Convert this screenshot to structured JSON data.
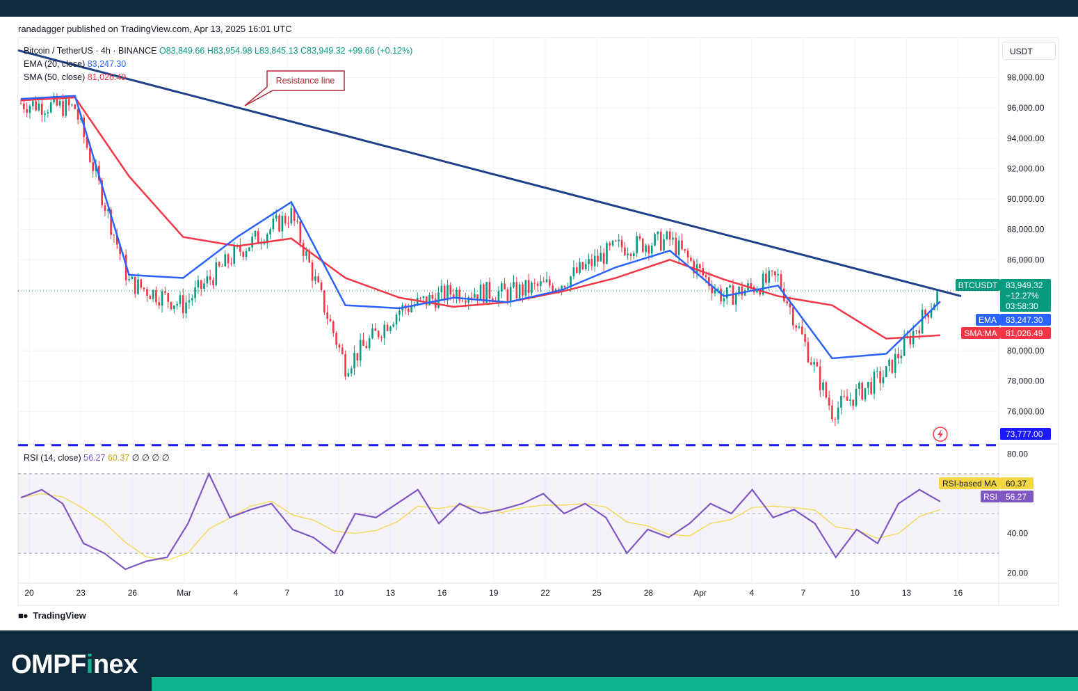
{
  "header": {
    "published": "ranadagger published on TradingView.com, Apr 13, 2025 16:01 UTC"
  },
  "legend": {
    "symbol": "Bitcoin / TetherUS · 4h · BINANCE",
    "open": "O83,849.66",
    "high": "H83,954.98",
    "low": "L83,845.13",
    "close": "C83,949.32",
    "change": "+99.66 (+0.12%)",
    "ema_label": "EMA (20, close)",
    "ema_value": "83,247.30",
    "sma_label": "SMA (50, close)",
    "sma_value": "81,026.49"
  },
  "annotation": {
    "text": "Resistance line"
  },
  "currency": "USDT",
  "price_axis": {
    "labels": [
      "98,000.00",
      "96,000.00",
      "94,000.00",
      "92,000.00",
      "90,000.00",
      "88,000.00",
      "86,000.00",
      "80,000.00",
      "78,000.00",
      "76,000.00"
    ]
  },
  "price_tags": {
    "symbol": "BTCUSDT",
    "price": "83,949.32",
    "pct": "−12.27%",
    "countdown": "03:58:30",
    "ema_name": "EMA",
    "ema": "83,247.30",
    "sma_name": "SMA:MA",
    "sma": "81,026.49",
    "support": "73,777.00"
  },
  "rsi_legend": {
    "label": "RSI (14, close)",
    "rsi": "56.27",
    "ma": "60.37",
    "extra": "∅ ∅ ∅ ∅"
  },
  "rsi_axis": {
    "labels": [
      "80.00",
      "40.00",
      "20.00"
    ]
  },
  "rsi_tags": {
    "ma_name": "RSI-based MA",
    "ma": "60.37",
    "rsi_name": "RSI",
    "rsi": "56.27"
  },
  "time_axis": {
    "labels": [
      "20",
      "23",
      "26",
      "Mar",
      "4",
      "7",
      "10",
      "13",
      "16",
      "19",
      "22",
      "25",
      "28",
      "Apr",
      "4",
      "7",
      "10",
      "13",
      "16"
    ]
  },
  "footer": {
    "tv": "TradingView",
    "brand_a": "OMPF",
    "brand_b": "i",
    "brand_c": "nex"
  },
  "colors": {
    "up": "#089981",
    "down": "#f23645",
    "ema": "#2962ff",
    "sma": "#f23645",
    "trend": "#1e3f8a",
    "rsi": "#7e57c2",
    "rsi_ma": "#f5d742",
    "support": "#1a1aff"
  },
  "chart_data": {
    "type": "line",
    "title": "Bitcoin / TetherUS · 4h · BINANCE",
    "price_range": [
      74500,
      100000
    ],
    "x": [
      "Feb 20",
      "Feb 23",
      "Feb 26",
      "Mar 1",
      "Mar 4",
      "Mar 7",
      "Mar 10",
      "Mar 13",
      "Mar 16",
      "Mar 19",
      "Mar 22",
      "Mar 25",
      "Mar 28",
      "Apr 1",
      "Apr 4",
      "Apr 7",
      "Apr 10",
      "Apr 13"
    ],
    "series": [
      {
        "name": "EMA (20, close)",
        "values": [
          96600,
          96800,
          85000,
          84800,
          87500,
          89800,
          83000,
          82800,
          83500,
          83200,
          84000,
          85500,
          86600,
          83600,
          84300,
          79500,
          79800,
          83247
        ]
      },
      {
        "name": "SMA (50, close)",
        "values": [
          96500,
          96700,
          91500,
          87500,
          86900,
          87400,
          84800,
          83500,
          82900,
          83200,
          83900,
          84800,
          86000,
          84700,
          83600,
          83000,
          80800,
          81026
        ]
      },
      {
        "name": "BTCUSDT",
        "values": [
          96300,
          96000,
          84500,
          83000,
          86500,
          89000,
          79000,
          82700,
          83900,
          83800,
          84500,
          86800,
          87300,
          83500,
          84800,
          76000,
          78500,
          83949
        ]
      }
    ],
    "resistance_line": {
      "start": [
        "Feb 20",
        99800
      ],
      "end": [
        "Apr 14",
        83600
      ]
    },
    "support_level": 73777,
    "rsi": {
      "range": [
        15,
        85
      ],
      "levels": [
        70,
        30
      ],
      "values": [
        58,
        62,
        55,
        35,
        30,
        22,
        26,
        28,
        45,
        70,
        48,
        52,
        55,
        42,
        38,
        30,
        50,
        48,
        55,
        62,
        45,
        55,
        50,
        52,
        55,
        60,
        50,
        55,
        48,
        30,
        42,
        38,
        45,
        55,
        50,
        62,
        48,
        52,
        45,
        28,
        42,
        35,
        55,
        62,
        56
      ]
    }
  }
}
